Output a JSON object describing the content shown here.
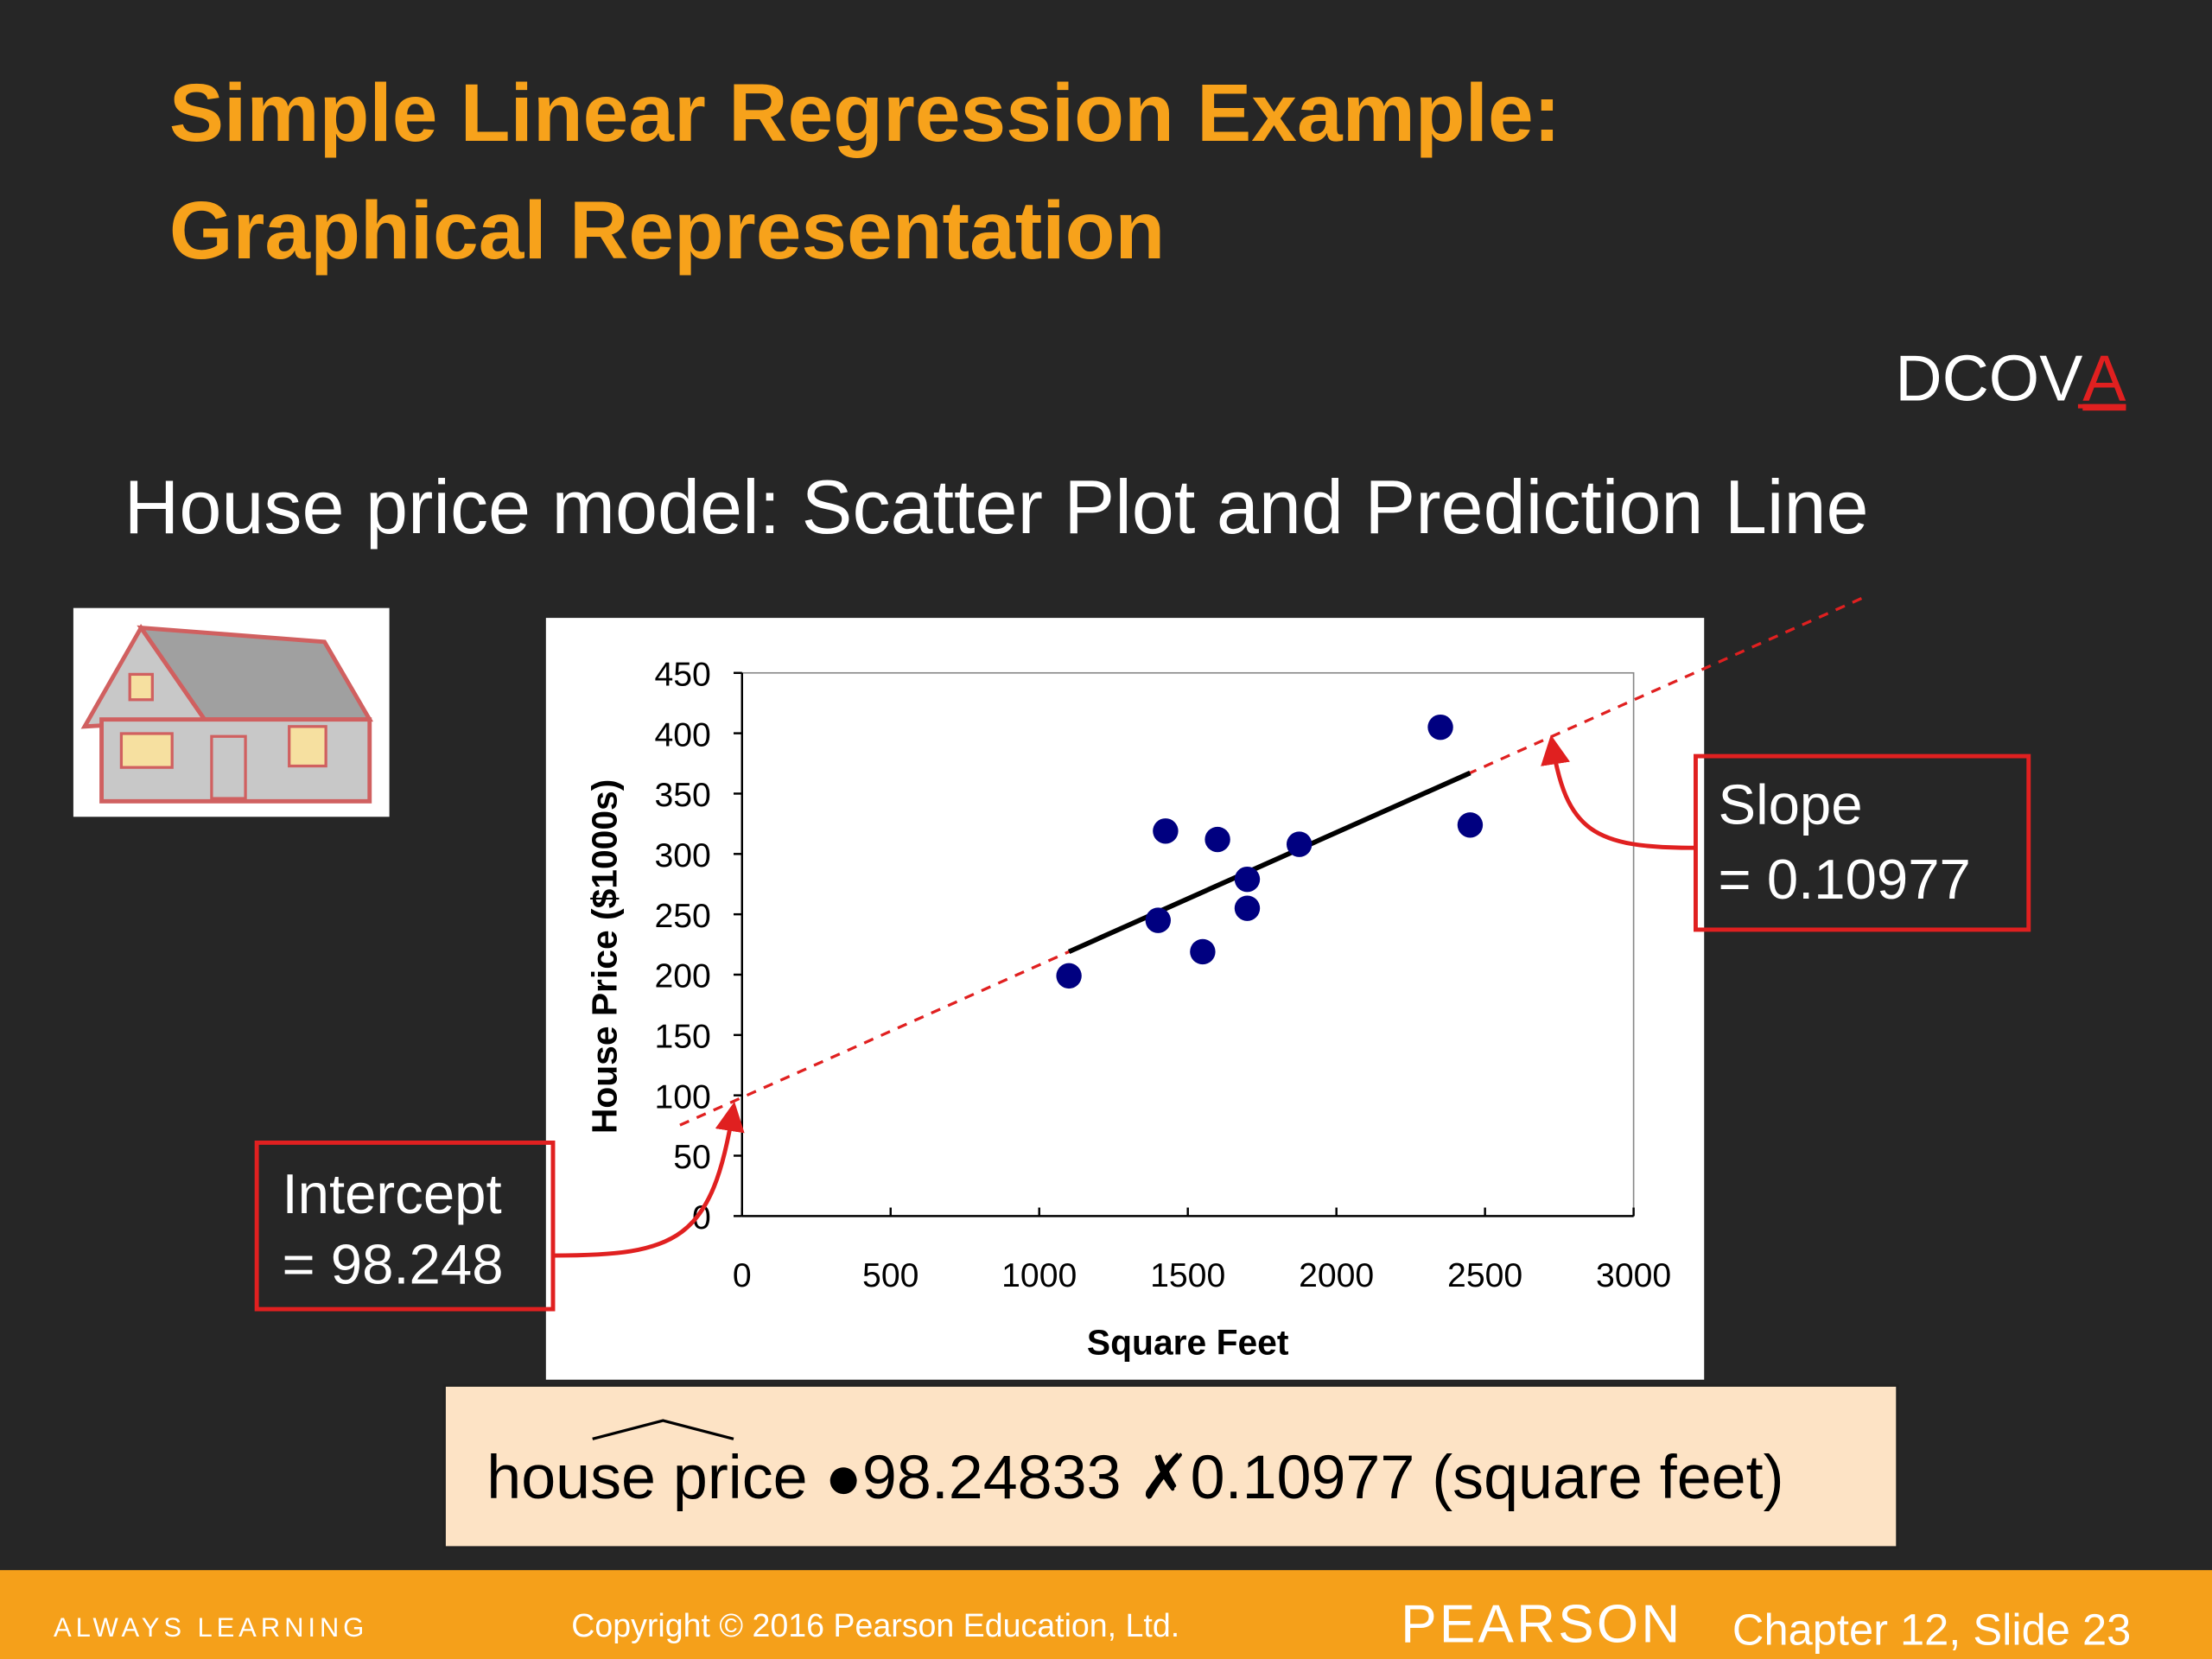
{
  "title": [
    "Simple Linear Regression Example:",
    "Graphical Representation"
  ],
  "dcova": {
    "plain": "DCOV",
    "highlight": "A"
  },
  "subtitle": "House price model:  Scatter Plot and Prediction Line",
  "chart_data": {
    "type": "scatter",
    "x_label": "Square Feet",
    "y_label": "House Price ($1000s)",
    "x": [
      1400,
      1600,
      1700,
      1875,
      1100,
      1550,
      2350,
      2450,
      1425,
      1700
    ],
    "values": [
      245,
      312,
      279,
      308,
      199,
      219,
      405,
      324,
      319,
      255
    ],
    "color": "#000080",
    "xlim": [
      0,
      3000
    ],
    "xticks": [
      0,
      500,
      1000,
      1500,
      2000,
      2500,
      3000
    ],
    "ylim": [
      0,
      450
    ],
    "yticks": [
      0,
      50,
      100,
      150,
      200,
      250,
      300,
      350,
      400,
      450
    ],
    "regression": {
      "intercept": 98.248,
      "slope": 0.10977,
      "color": "#000000",
      "extension_color": "#e02020"
    },
    "annotations": {
      "intercept": [
        "Intercept",
        "= 98.248"
      ],
      "slope": [
        "Slope",
        "= 0.10977"
      ]
    }
  },
  "equation": "house price ●98.24833 ✗0.10977 (square feet)",
  "footer": {
    "tagline": "ALWAYS LEARNING",
    "copyright": "Copyright © 2016 Pearson Education, Ltd.",
    "brand": "PEARSON",
    "slide": "Chapter 12, Slide 23"
  }
}
